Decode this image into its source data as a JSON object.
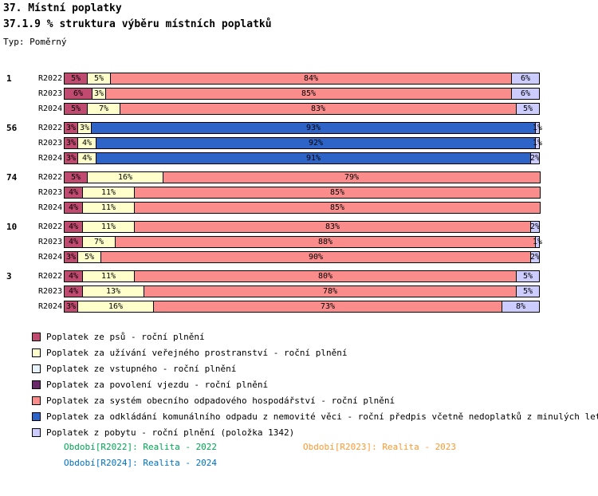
{
  "header": {
    "title": "37. Místní poplatky",
    "subtitle": "37.1.9 % struktura výběru místních poplatků",
    "type_label": "Typ: Poměrný"
  },
  "colors": {
    "psi": "#C04A70",
    "prostranstvi": "#FFFFCC",
    "vstupne": "#E9F3FE",
    "vjezd": "#6A2A6A",
    "odpad_system": "#FA8C8C",
    "odpad_komunal": "#2E63C8",
    "pobyt": "#CCCCFF"
  },
  "legend": [
    {
      "key": "psi",
      "label": "Poplatek ze psů - roční plnění"
    },
    {
      "key": "prostranstvi",
      "label": "Poplatek za užívání veřejného prostranství - roční plnění"
    },
    {
      "key": "vstupne",
      "label": "Poplatek ze vstupného - roční plnění"
    },
    {
      "key": "vjezd",
      "label": "Poplatek za povolení vjezdu - roční plnění"
    },
    {
      "key": "odpad_system",
      "label": "Poplatek za systém obecního odpadového hospodářství - roční plnění"
    },
    {
      "key": "odpad_komunal",
      "label": "Poplatek za odkládání komunálního odpadu z nemovité věci - roční předpis včetně nedoplatků z minulých let"
    },
    {
      "key": "pobyt",
      "label": "Poplatek z pobytu - roční plnění (položka 1342)"
    }
  ],
  "chart_data": {
    "type": "bar",
    "orientation": "horizontal",
    "stacked": true,
    "unit": "%",
    "x_max": 100,
    "grid": false,
    "groups": [
      {
        "label": "1",
        "rows": [
          {
            "label": "R2022",
            "segments": [
              {
                "series": "psi",
                "value": 5
              },
              {
                "series": "prostranstvi",
                "value": 5
              },
              {
                "series": "odpad_system",
                "value": 84
              },
              {
                "series": "pobyt",
                "value": 6
              }
            ]
          },
          {
            "label": "R2023",
            "segments": [
              {
                "series": "psi",
                "value": 6
              },
              {
                "series": "prostranstvi",
                "value": 3
              },
              {
                "series": "odpad_system",
                "value": 85
              },
              {
                "series": "pobyt",
                "value": 6
              }
            ]
          },
          {
            "label": "R2024",
            "segments": [
              {
                "series": "psi",
                "value": 5
              },
              {
                "series": "prostranstvi",
                "value": 7
              },
              {
                "series": "odpad_system",
                "value": 83
              },
              {
                "series": "pobyt",
                "value": 5
              }
            ]
          }
        ]
      },
      {
        "label": "56",
        "rows": [
          {
            "label": "R2022",
            "segments": [
              {
                "series": "psi",
                "value": 3
              },
              {
                "series": "prostranstvi",
                "value": 3
              },
              {
                "series": "odpad_komunal",
                "value": 93
              },
              {
                "series": "pobyt",
                "value": 1
              }
            ]
          },
          {
            "label": "R2023",
            "segments": [
              {
                "series": "psi",
                "value": 3
              },
              {
                "series": "prostranstvi",
                "value": 4
              },
              {
                "series": "odpad_komunal",
                "value": 92
              },
              {
                "series": "pobyt",
                "value": 1
              }
            ]
          },
          {
            "label": "R2024",
            "segments": [
              {
                "series": "psi",
                "value": 3
              },
              {
                "series": "prostranstvi",
                "value": 4
              },
              {
                "series": "odpad_komunal",
                "value": 91
              },
              {
                "series": "pobyt",
                "value": 2
              }
            ]
          }
        ]
      },
      {
        "label": "74",
        "rows": [
          {
            "label": "R2022",
            "segments": [
              {
                "series": "psi",
                "value": 5
              },
              {
                "series": "prostranstvi",
                "value": 16
              },
              {
                "series": "odpad_system",
                "value": 79
              }
            ]
          },
          {
            "label": "R2023",
            "segments": [
              {
                "series": "psi",
                "value": 4
              },
              {
                "series": "prostranstvi",
                "value": 11
              },
              {
                "series": "odpad_system",
                "value": 85
              }
            ]
          },
          {
            "label": "R2024",
            "segments": [
              {
                "series": "psi",
                "value": 4
              },
              {
                "series": "prostranstvi",
                "value": 11
              },
              {
                "series": "odpad_system",
                "value": 85
              }
            ]
          }
        ]
      },
      {
        "label": "10",
        "rows": [
          {
            "label": "R2022",
            "segments": [
              {
                "series": "psi",
                "value": 4
              },
              {
                "series": "prostranstvi",
                "value": 11
              },
              {
                "series": "odpad_system",
                "value": 83
              },
              {
                "series": "pobyt",
                "value": 2
              }
            ]
          },
          {
            "label": "R2023",
            "segments": [
              {
                "series": "psi",
                "value": 4
              },
              {
                "series": "prostranstvi",
                "value": 7
              },
              {
                "series": "odpad_system",
                "value": 88
              },
              {
                "series": "pobyt",
                "value": 1
              }
            ]
          },
          {
            "label": "R2024",
            "segments": [
              {
                "series": "psi",
                "value": 3
              },
              {
                "series": "prostranstvi",
                "value": 5
              },
              {
                "series": "odpad_system",
                "value": 90
              },
              {
                "series": "pobyt",
                "value": 2
              }
            ]
          }
        ]
      },
      {
        "label": "3",
        "rows": [
          {
            "label": "R2022",
            "segments": [
              {
                "series": "psi",
                "value": 4
              },
              {
                "series": "prostranstvi",
                "value": 11
              },
              {
                "series": "odpad_system",
                "value": 80
              },
              {
                "series": "pobyt",
                "value": 5
              }
            ]
          },
          {
            "label": "R2023",
            "segments": [
              {
                "series": "psi",
                "value": 4
              },
              {
                "series": "prostranstvi",
                "value": 13
              },
              {
                "series": "odpad_system",
                "value": 78
              },
              {
                "series": "pobyt",
                "value": 5
              }
            ]
          },
          {
            "label": "R2024",
            "segments": [
              {
                "series": "psi",
                "value": 3
              },
              {
                "series": "prostranstvi",
                "value": 16
              },
              {
                "series": "odpad_system",
                "value": 73
              },
              {
                "series": "pobyt",
                "value": 8
              }
            ]
          }
        ]
      }
    ]
  },
  "footer": [
    {
      "text": "Období[R2022]: Realita - 2022",
      "color": "#00A651"
    },
    {
      "text": "Období[R2023]: Realita - 2023",
      "color": "#FF9933"
    },
    {
      "text": "Období[R2024]: Realita - 2024",
      "color": "#0070C0"
    }
  ]
}
